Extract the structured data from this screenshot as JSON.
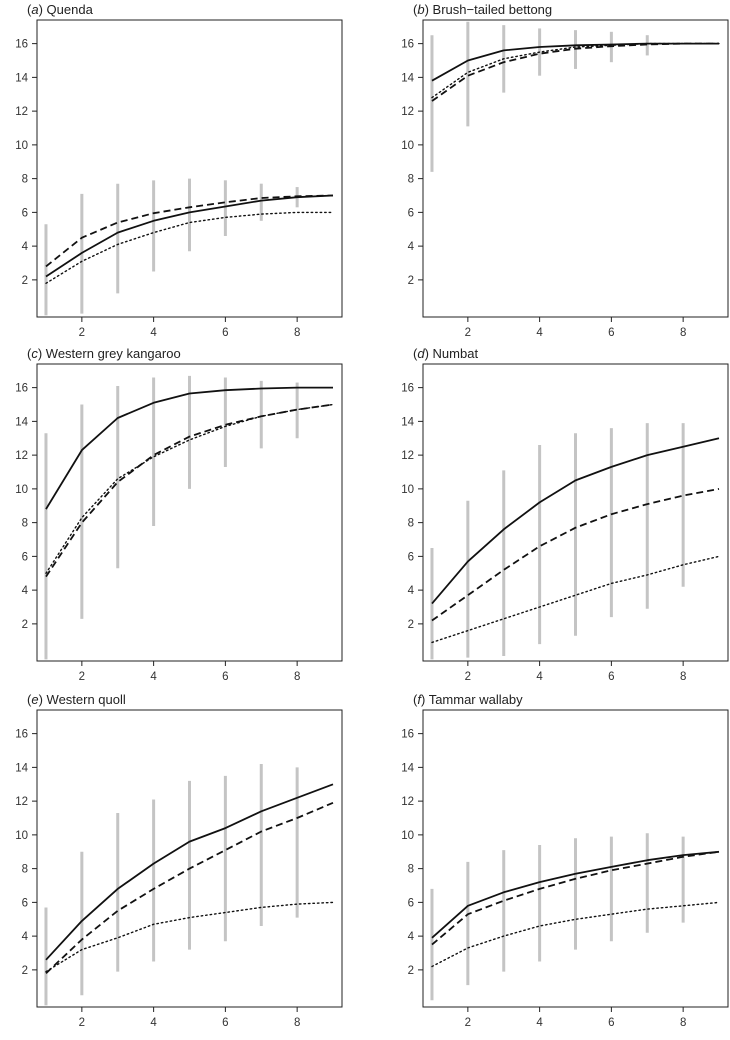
{
  "chart_data": [
    {
      "type": "line",
      "letter": "a",
      "title": "Quenda",
      "xticks": [
        2,
        4,
        6,
        8
      ],
      "yticks": [
        2,
        4,
        6,
        8,
        10,
        12,
        14,
        16
      ],
      "xlim": [
        0.75,
        9.25
      ],
      "ylim": [
        -0.2,
        17.4
      ],
      "series": [
        {
          "style": "solid",
          "x": [
            1,
            2,
            3,
            4,
            5,
            6,
            7,
            8,
            9
          ],
          "y": [
            2.2,
            3.6,
            4.8,
            5.5,
            6.0,
            6.35,
            6.7,
            6.9,
            7.0
          ]
        },
        {
          "style": "dashed",
          "x": [
            1,
            2,
            3,
            4,
            5,
            6,
            7,
            8,
            9
          ],
          "y": [
            2.8,
            4.5,
            5.4,
            5.95,
            6.3,
            6.6,
            6.85,
            6.95,
            7.0
          ]
        },
        {
          "style": "dotted",
          "x": [
            1,
            2,
            3,
            4,
            5,
            6,
            7,
            8,
            9
          ],
          "y": [
            1.8,
            3.1,
            4.1,
            4.8,
            5.4,
            5.7,
            5.9,
            6.0,
            6.0
          ]
        }
      ],
      "ranges": [
        [
          1,
          -0.1,
          5.3
        ],
        [
          2,
          0.0,
          7.1
        ],
        [
          3,
          1.2,
          7.7
        ],
        [
          4,
          2.5,
          7.9
        ],
        [
          5,
          3.7,
          8.0
        ],
        [
          6,
          4.6,
          7.9
        ],
        [
          7,
          5.5,
          7.7
        ],
        [
          8,
          6.3,
          7.5
        ]
      ]
    },
    {
      "type": "line",
      "letter": "b",
      "title": "Brush−tailed bettong",
      "xticks": [
        2,
        4,
        6,
        8
      ],
      "yticks": [
        2,
        4,
        6,
        8,
        10,
        12,
        14,
        16
      ],
      "xlim": [
        0.75,
        9.25
      ],
      "ylim": [
        -0.2,
        17.4
      ],
      "series": [
        {
          "style": "solid",
          "x": [
            1,
            2,
            3,
            4,
            5,
            6,
            7,
            8,
            9
          ],
          "y": [
            13.8,
            15.0,
            15.6,
            15.8,
            15.9,
            15.95,
            16.0,
            16.0,
            16.0
          ]
        },
        {
          "style": "dashed",
          "x": [
            1,
            2,
            3,
            4,
            5,
            6,
            7,
            8,
            9
          ],
          "y": [
            12.6,
            14.1,
            14.9,
            15.4,
            15.7,
            15.85,
            15.95,
            16.0,
            16.0
          ]
        },
        {
          "style": "dotted",
          "x": [
            1,
            2,
            3,
            4,
            5,
            6,
            7,
            8,
            9
          ],
          "y": [
            12.8,
            14.3,
            15.1,
            15.5,
            15.8,
            15.9,
            16.0,
            16.0,
            16.0
          ]
        }
      ],
      "ranges": [
        [
          1,
          8.4,
          16.5
        ],
        [
          2,
          11.1,
          17.3
        ],
        [
          3,
          13.1,
          17.1
        ],
        [
          4,
          14.1,
          16.9
        ],
        [
          5,
          14.5,
          16.8
        ],
        [
          6,
          14.9,
          16.7
        ],
        [
          7,
          15.3,
          16.5
        ]
      ]
    },
    {
      "type": "line",
      "letter": "c",
      "title": "Western grey kangaroo",
      "xticks": [
        2,
        4,
        6,
        8
      ],
      "yticks": [
        2,
        4,
        6,
        8,
        10,
        12,
        14,
        16
      ],
      "xlim": [
        0.75,
        9.25
      ],
      "ylim": [
        -0.2,
        17.4
      ],
      "series": [
        {
          "style": "solid",
          "x": [
            1,
            2,
            3,
            4,
            5,
            6,
            7,
            8,
            9
          ],
          "y": [
            8.8,
            12.3,
            14.2,
            15.1,
            15.65,
            15.85,
            15.95,
            16.0,
            16.0
          ]
        },
        {
          "style": "dashed",
          "x": [
            1,
            2,
            3,
            4,
            5,
            6,
            7,
            8,
            9
          ],
          "y": [
            4.8,
            8.0,
            10.4,
            12.0,
            13.1,
            13.8,
            14.3,
            14.7,
            15.0
          ]
        },
        {
          "style": "dotted",
          "x": [
            1,
            2,
            3,
            4,
            5,
            6,
            7,
            8,
            9
          ],
          "y": [
            5.0,
            8.3,
            10.6,
            11.9,
            12.9,
            13.7,
            14.3,
            14.7,
            15.0
          ]
        }
      ],
      "ranges": [
        [
          1,
          -0.1,
          13.3
        ],
        [
          2,
          2.3,
          15.0
        ],
        [
          3,
          5.3,
          16.1
        ],
        [
          4,
          7.8,
          16.6
        ],
        [
          5,
          10.0,
          16.7
        ],
        [
          6,
          11.3,
          16.6
        ],
        [
          7,
          12.4,
          16.4
        ],
        [
          8,
          13.0,
          16.3
        ]
      ]
    },
    {
      "type": "line",
      "letter": "d",
      "title": "Numbat",
      "xticks": [
        2,
        4,
        6,
        8
      ],
      "yticks": [
        2,
        4,
        6,
        8,
        10,
        12,
        14,
        16
      ],
      "xlim": [
        0.75,
        9.25
      ],
      "ylim": [
        -0.2,
        17.4
      ],
      "series": [
        {
          "style": "solid",
          "x": [
            1,
            2,
            3,
            4,
            5,
            6,
            7,
            8,
            9
          ],
          "y": [
            3.2,
            5.7,
            7.6,
            9.2,
            10.5,
            11.3,
            12.0,
            12.5,
            13.0
          ]
        },
        {
          "style": "dashed",
          "x": [
            1,
            2,
            3,
            4,
            5,
            6,
            7,
            8,
            9
          ],
          "y": [
            2.2,
            3.7,
            5.2,
            6.6,
            7.7,
            8.5,
            9.1,
            9.6,
            10.0
          ]
        },
        {
          "style": "dotted",
          "x": [
            1,
            2,
            3,
            4,
            5,
            6,
            7,
            8,
            9
          ],
          "y": [
            0.9,
            1.6,
            2.3,
            3.0,
            3.7,
            4.4,
            4.9,
            5.5,
            6.0
          ]
        }
      ],
      "ranges": [
        [
          1,
          -0.1,
          6.5
        ],
        [
          2,
          0.0,
          9.3
        ],
        [
          3,
          0.1,
          11.1
        ],
        [
          4,
          0.8,
          12.6
        ],
        [
          5,
          1.3,
          13.3
        ],
        [
          6,
          2.4,
          13.6
        ],
        [
          7,
          2.9,
          13.9
        ],
        [
          8,
          4.2,
          13.9
        ]
      ]
    },
    {
      "type": "line",
      "letter": "e",
      "title": "Western quoll",
      "xticks": [
        2,
        4,
        6,
        8
      ],
      "yticks": [
        2,
        4,
        6,
        8,
        10,
        12,
        14,
        16
      ],
      "xlim": [
        0.75,
        9.25
      ],
      "ylim": [
        -0.2,
        17.4
      ],
      "series": [
        {
          "style": "solid",
          "x": [
            1,
            2,
            3,
            4,
            5,
            6,
            7,
            8,
            9
          ],
          "y": [
            2.6,
            4.9,
            6.8,
            8.3,
            9.6,
            10.4,
            11.4,
            12.2,
            13.0
          ]
        },
        {
          "style": "dashed",
          "x": [
            1,
            2,
            3,
            4,
            5,
            6,
            7,
            8,
            9
          ],
          "y": [
            1.8,
            3.8,
            5.5,
            6.8,
            8.0,
            9.1,
            10.2,
            11.0,
            11.9
          ]
        },
        {
          "style": "dotted",
          "x": [
            1,
            2,
            3,
            4,
            5,
            6,
            7,
            8,
            9
          ],
          "y": [
            1.9,
            3.2,
            3.9,
            4.7,
            5.1,
            5.4,
            5.7,
            5.9,
            6.0
          ]
        }
      ],
      "ranges": [
        [
          1,
          -0.1,
          5.7
        ],
        [
          2,
          0.5,
          9.0
        ],
        [
          3,
          1.9,
          11.3
        ],
        [
          4,
          2.5,
          12.1
        ],
        [
          5,
          3.2,
          13.2
        ],
        [
          6,
          3.7,
          13.5
        ],
        [
          7,
          4.6,
          14.2
        ],
        [
          8,
          5.1,
          14.0
        ]
      ]
    },
    {
      "type": "line",
      "letter": "f",
      "title": "Tammar wallaby",
      "xticks": [
        2,
        4,
        6,
        8
      ],
      "yticks": [
        2,
        4,
        6,
        8,
        10,
        12,
        14,
        16
      ],
      "xlim": [
        0.75,
        9.25
      ],
      "ylim": [
        -0.2,
        17.4
      ],
      "series": [
        {
          "style": "solid",
          "x": [
            1,
            2,
            3,
            4,
            5,
            6,
            7,
            8,
            9
          ],
          "y": [
            3.9,
            5.8,
            6.6,
            7.2,
            7.7,
            8.1,
            8.5,
            8.8,
            9.0
          ]
        },
        {
          "style": "dashed",
          "x": [
            1,
            2,
            3,
            4,
            5,
            6,
            7,
            8,
            9
          ],
          "y": [
            3.5,
            5.3,
            6.1,
            6.8,
            7.4,
            7.9,
            8.3,
            8.7,
            9.0
          ]
        },
        {
          "style": "dotted",
          "x": [
            1,
            2,
            3,
            4,
            5,
            6,
            7,
            8,
            9
          ],
          "y": [
            2.2,
            3.3,
            4.0,
            4.6,
            5.0,
            5.3,
            5.6,
            5.8,
            6.0
          ]
        }
      ],
      "ranges": [
        [
          1,
          0.2,
          6.8
        ],
        [
          2,
          1.1,
          8.4
        ],
        [
          3,
          1.9,
          9.1
        ],
        [
          4,
          2.5,
          9.4
        ],
        [
          5,
          3.2,
          9.8
        ],
        [
          6,
          3.7,
          9.9
        ],
        [
          7,
          4.2,
          10.1
        ],
        [
          8,
          4.8,
          9.9
        ]
      ]
    }
  ]
}
